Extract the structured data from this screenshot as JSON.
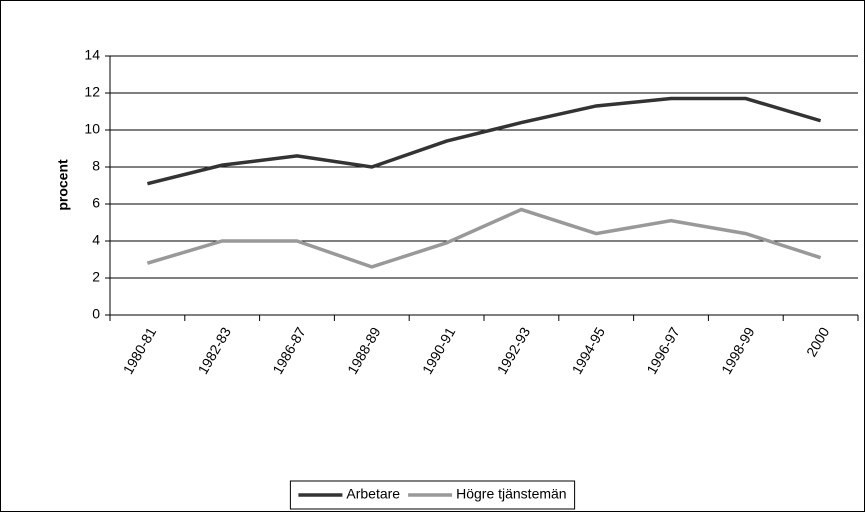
{
  "chart_data": {
    "type": "line",
    "y_label": "procent",
    "categories": [
      "1980-81",
      "1982-83",
      "1986-87",
      "1988-89",
      "1990-91",
      "1992-93",
      "1994-95",
      "1996-97",
      "1998-99",
      "2000"
    ],
    "series": [
      {
        "name": "Arbetare",
        "color": "#333333",
        "values": [
          7.1,
          8.1,
          8.6,
          8.0,
          9.4,
          10.4,
          11.3,
          11.7,
          11.7,
          10.5
        ]
      },
      {
        "name": "Högre tjänstemän",
        "color": "#999999",
        "values": [
          2.8,
          4.0,
          4.0,
          2.6,
          3.9,
          5.7,
          4.4,
          5.1,
          4.4,
          3.1
        ]
      }
    ],
    "ylim": [
      0,
      14
    ],
    "yticks": [
      0,
      2,
      4,
      6,
      8,
      10,
      12,
      14
    ],
    "grid": true,
    "legend": "bottom"
  }
}
